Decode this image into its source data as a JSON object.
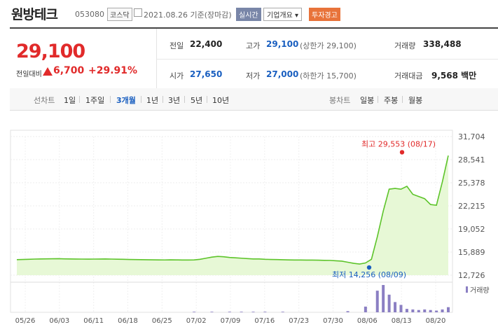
{
  "header": {
    "name": "원방테크",
    "code": "053080",
    "market": "코스닥",
    "date_text": "2021.08.26 기준(장마감)",
    "realtime_label": "실시간",
    "company_info_label": "기업개요",
    "warning_label": "투자경고"
  },
  "price": {
    "current": "29,100",
    "change_label": "전일대비",
    "change_value": "6,700",
    "change_pct": "+29.91%",
    "color": "#e12a2a"
  },
  "quote": {
    "prev_close_label": "전일",
    "prev_close": "22,400",
    "high_label": "고가",
    "high": "29,100",
    "upper_limit": "(상한가 29,100)",
    "volume_label": "거래량",
    "volume": "338,488",
    "open_label": "시가",
    "open": "27,650",
    "low_label": "저가",
    "low": "27,000",
    "lower_limit": "(하한가 15,700)",
    "turnover_label": "거래대금",
    "turnover": "9,568 백만"
  },
  "period_bar": {
    "line_label": "선차트",
    "line_periods": [
      "1일",
      "1주일",
      "3개월",
      "1년",
      "3년",
      "5년",
      "10년"
    ],
    "active": "3개월",
    "candle_label": "봉차트",
    "candle_periods": [
      "일봉",
      "주봉",
      "월봉"
    ]
  },
  "chart_data": {
    "type": "line",
    "y_ticks": [
      "31,704",
      "28,541",
      "25,378",
      "22,215",
      "19,052",
      "15,889",
      "12,726"
    ],
    "ylim": [
      12726,
      31704
    ],
    "x_labels": [
      "05/26",
      "06/03",
      "06/11",
      "06/18",
      "06/25",
      "07/02",
      "07/09",
      "07/16",
      "07/23",
      "07/30",
      "08/06",
      "08/13",
      "08/20"
    ],
    "series": [
      {
        "values": [
          14850,
          14880,
          14900,
          14930,
          14950,
          14960,
          14970,
          14980,
          14960,
          14950,
          14940,
          14930,
          14920,
          14930,
          14940,
          14950,
          14930,
          14910,
          14900,
          14880,
          14860,
          14850,
          14840,
          14830,
          14820,
          14810,
          14830,
          14820,
          14800,
          14800,
          14820,
          14900,
          15050,
          15200,
          15300,
          15250,
          15150,
          15100,
          15050,
          15000,
          14950,
          14950,
          14900,
          14880,
          14860,
          14840,
          14820,
          14800,
          14800,
          14790,
          14790,
          14780,
          14760,
          14750,
          14700,
          14650,
          14500,
          14350,
          14256,
          14400,
          14900,
          18000,
          21500,
          24500,
          24600,
          24500,
          24900,
          23800,
          23500,
          23200,
          22400,
          22300,
          25500,
          29100
        ]
      }
    ],
    "annotations": [
      {
        "text": "최고 29,553 (08/17)",
        "value": 29553,
        "kind": "high"
      },
      {
        "text": "최저 14,256 (08/09)",
        "value": 14256,
        "kind": "low"
      }
    ],
    "volume_label": "거래량",
    "volume_bars": [
      {
        "index": 56,
        "value": 2
      },
      {
        "index": 59,
        "value": 10
      },
      {
        "index": 61,
        "value": 38
      },
      {
        "index": 62,
        "value": 48
      },
      {
        "index": 63,
        "value": 31
      },
      {
        "index": 64,
        "value": 18
      },
      {
        "index": 65,
        "value": 13
      },
      {
        "index": 66,
        "value": 6
      },
      {
        "index": 67,
        "value": 5
      },
      {
        "index": 68,
        "value": 4
      },
      {
        "index": 69,
        "value": 5
      },
      {
        "index": 70,
        "value": 4
      },
      {
        "index": 71,
        "value": 3
      },
      {
        "index": 72,
        "value": 5
      },
      {
        "index": 73,
        "value": 9
      },
      {
        "index": 30,
        "value": 1
      },
      {
        "index": 33,
        "value": 1
      },
      {
        "index": 36,
        "value": 1
      },
      {
        "index": 38,
        "value": 1
      },
      {
        "index": 40,
        "value": 1
      },
      {
        "index": 42,
        "value": 1
      },
      {
        "index": 45,
        "value": 1
      }
    ],
    "colors": {
      "line": "#5dc42a",
      "fill": "#e7f8d6",
      "high": "#e12a2a",
      "low": "#1a5fc0",
      "volume": "#8b7fc3"
    }
  }
}
